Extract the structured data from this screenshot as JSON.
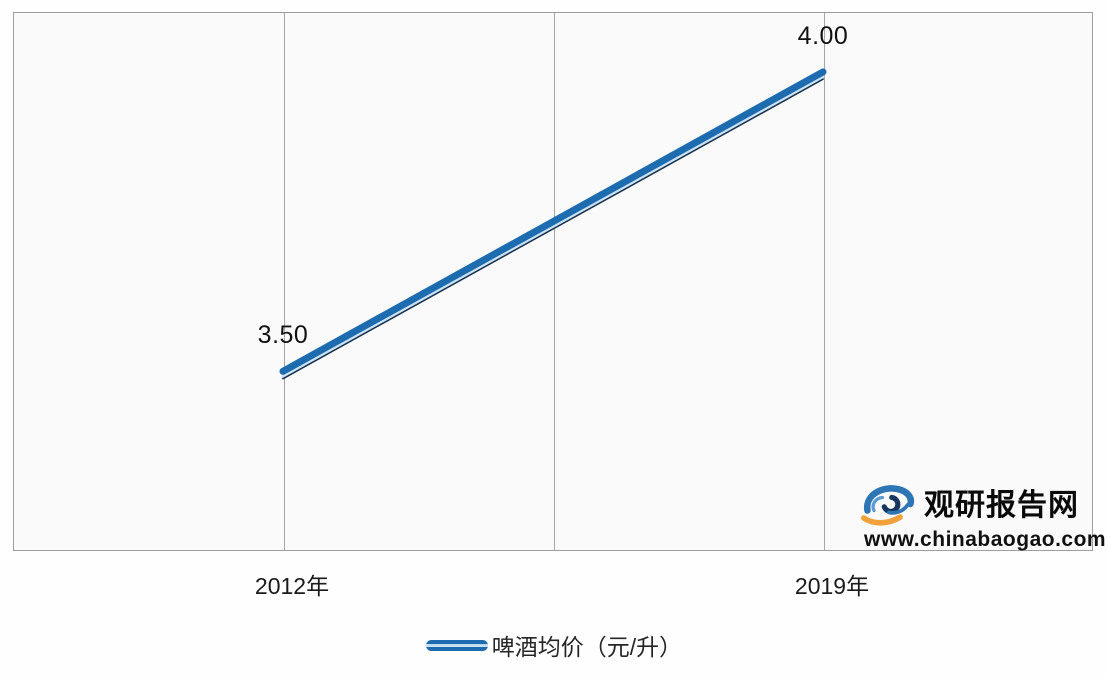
{
  "chart_data": {
    "type": "line",
    "categories": [
      "2012年",
      "2019年"
    ],
    "series": [
      {
        "name": "啤酒均价（元/升）",
        "values": [
          3.5,
          4.0
        ]
      }
    ],
    "point_labels": [
      "3.50",
      "4.00"
    ],
    "xlabel": "",
    "ylabel": "",
    "ylim": [
      3.2,
      4.1
    ],
    "grid": "vertical-gridlines-only",
    "legend_position": "bottom-center",
    "colors": {
      "line": "#1e6cb0",
      "line_highlight": "#cde3f4",
      "line_shadow": "#17324e",
      "gridline": "#a6a6a6",
      "plot_background": "#fafafa",
      "label_text": "#111111"
    }
  },
  "legend": {
    "items": [
      {
        "label": "啤酒均价（元/升）",
        "marker": "line-capsule"
      }
    ]
  },
  "watermark": {
    "site_name": "观研报告网",
    "site_url": "www.chinabaogao.com",
    "logo_icon": "eye-swirl-icon",
    "colors": {
      "blue": "#2e75b6",
      "light_blue": "#5b9bd5",
      "navy": "#17375e",
      "orange": "#f0a13a"
    }
  }
}
